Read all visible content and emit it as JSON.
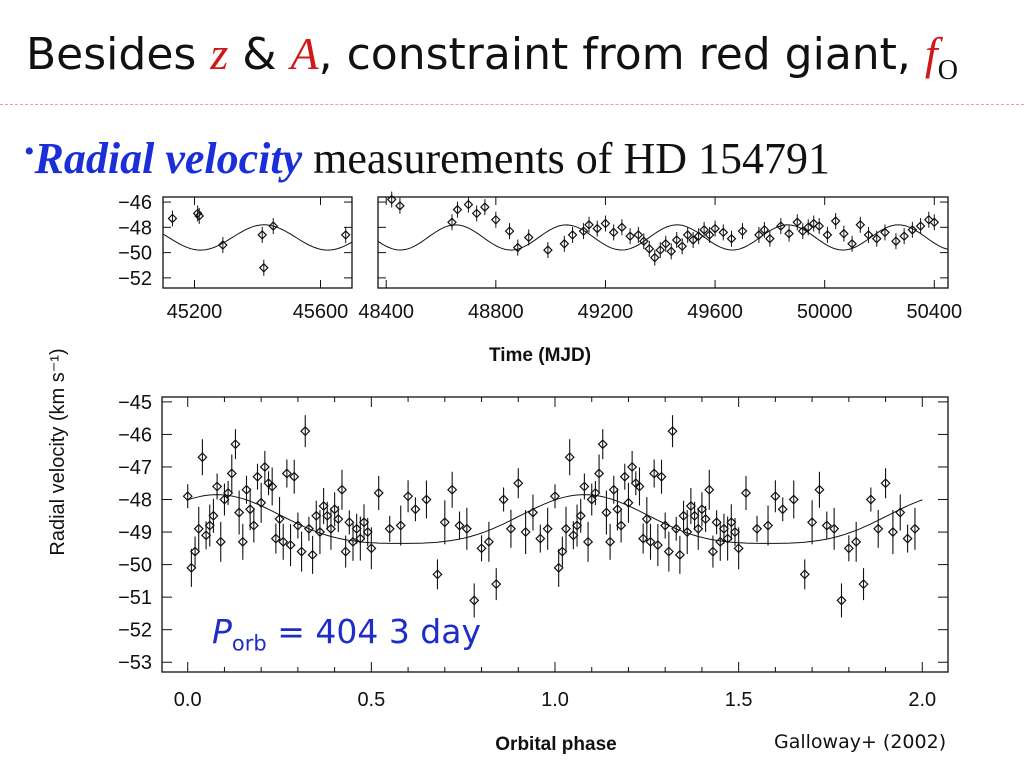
{
  "slide": {
    "title": {
      "prefix": "Besides ",
      "var1": "z",
      "amp": " & ",
      "var2": "A",
      "middle": ", constraint from red giant, ",
      "var3": "f",
      "var3_sub": "O"
    },
    "bullet": {
      "dot": "•",
      "emph": "Radial velocity",
      "rest": " measurements of HD 154791"
    },
    "period_label": {
      "symbol": "P",
      "sub": "orb",
      "rest": " = 404 3 day"
    },
    "citation": "Galloway+ (2002)"
  },
  "chart_data": [
    {
      "type": "scatter",
      "xlabel": "Time (MJD)",
      "ylabel": "",
      "broken_x_axis": [
        [
          45100,
          45700
        ],
        [
          48370,
          50450
        ]
      ],
      "xticks": [
        45200,
        45600,
        48400,
        48800,
        49200,
        49600,
        50000,
        50400
      ],
      "ylim": [
        -52.8,
        -45.6
      ],
      "yticks": [
        -46,
        -48,
        -50,
        -52
      ],
      "ytick_labels": [
        "−46",
        "−48",
        "−50",
        "−52"
      ],
      "marker": "open-diamond",
      "error_bars": true,
      "model_curve": true,
      "series": [
        {
          "x": [
            45130,
            45210,
            45215,
            45290,
            45415,
            45420,
            45450,
            45680,
            48420,
            48450,
            48640,
            48660,
            48700,
            48730,
            48760,
            48800,
            48850,
            48880,
            48920,
            48990,
            49050,
            49080,
            49120,
            49140,
            49170,
            49200,
            49230,
            49260,
            49290,
            49320,
            49340,
            49360,
            49380,
            49400,
            49420,
            49440,
            49460,
            49480,
            49500,
            49520,
            49540,
            49560,
            49580,
            49600,
            49630,
            49660,
            49700,
            49760,
            49780,
            49800,
            49840,
            49870,
            49900,
            49920,
            49940,
            49960,
            49980,
            50010,
            50040,
            50070,
            50100,
            50130,
            50160,
            50190,
            50220,
            50260,
            50290,
            50320,
            50350,
            50380,
            50400
          ],
          "y": [
            -47.3,
            -46.9,
            -47.1,
            -49.4,
            -48.6,
            -51.2,
            -47.9,
            -48.6,
            -45.8,
            -46.3,
            -47.6,
            -46.6,
            -46.2,
            -46.9,
            -46.4,
            -47.4,
            -48.3,
            -49.6,
            -48.8,
            -49.8,
            -49.3,
            -48.6,
            -48.3,
            -47.8,
            -48.1,
            -47.7,
            -48.4,
            -48.0,
            -48.7,
            -48.6,
            -49.1,
            -49.7,
            -50.4,
            -49.8,
            -49.3,
            -49.9,
            -49.0,
            -49.5,
            -48.6,
            -49.0,
            -48.7,
            -48.2,
            -48.6,
            -48.1,
            -48.4,
            -48.9,
            -48.3,
            -48.6,
            -48.2,
            -48.9,
            -47.9,
            -48.5,
            -47.6,
            -48.3,
            -48.0,
            -47.7,
            -47.9,
            -48.6,
            -47.5,
            -48.5,
            -49.3,
            -47.8,
            -48.6,
            -48.9,
            -48.4,
            -49.1,
            -48.7,
            -48.2,
            -47.9,
            -47.4,
            -47.6
          ]
        }
      ]
    },
    {
      "type": "scatter",
      "xlabel": "Orbital phase",
      "ylabel": "Radial velocity (km s⁻¹)",
      "xlim": [
        -0.07,
        2.07
      ],
      "ylim": [
        -53.3,
        -44.85
      ],
      "xticks": [
        0.0,
        0.5,
        1.0,
        1.5,
        2.0
      ],
      "xtick_labels": [
        "0.0",
        "0.5",
        "1.0",
        "1.5",
        "2.0"
      ],
      "yticks": [
        -45,
        -46,
        -47,
        -48,
        -49,
        -50,
        -51,
        -52,
        -53
      ],
      "ytick_labels": [
        "−45",
        "−46",
        "−47",
        "−48",
        "−49",
        "−50",
        "−51",
        "−52",
        "−53"
      ],
      "marker": "open-diamond",
      "error_bars": true,
      "model_curve": true,
      "series": [
        {
          "x": [
            0.0,
            0.01,
            0.02,
            0.03,
            0.04,
            0.05,
            0.06,
            0.07,
            0.08,
            0.09,
            0.1,
            0.11,
            0.12,
            0.13,
            0.14,
            0.15,
            0.16,
            0.17,
            0.18,
            0.19,
            0.2,
            0.21,
            0.22,
            0.23,
            0.24,
            0.25,
            0.26,
            0.27,
            0.28,
            0.29,
            0.3,
            0.31,
            0.32,
            0.33,
            0.34,
            0.35,
            0.36,
            0.37,
            0.38,
            0.39,
            0.4,
            0.41,
            0.42,
            0.43,
            0.44,
            0.45,
            0.46,
            0.47,
            0.48,
            0.49,
            0.5,
            0.52,
            0.55,
            0.58,
            0.6,
            0.62,
            0.65,
            0.68,
            0.7,
            0.72,
            0.74,
            0.76,
            0.78,
            0.8,
            0.82,
            0.84,
            0.86,
            0.88,
            0.9,
            0.92,
            0.94,
            0.96,
            0.98
          ],
          "y": [
            -47.9,
            -50.1,
            -49.6,
            -48.9,
            -46.7,
            -49.1,
            -48.8,
            -48.5,
            -47.6,
            -49.3,
            -48.0,
            -47.8,
            -47.2,
            -46.3,
            -48.4,
            -49.3,
            -47.7,
            -48.3,
            -48.8,
            -47.3,
            -48.1,
            -47.0,
            -47.5,
            -47.6,
            -49.2,
            -48.6,
            -49.3,
            -47.2,
            -49.4,
            -47.3,
            -48.8,
            -49.6,
            -45.9,
            -48.9,
            -49.7,
            -48.5,
            -49.0,
            -48.2,
            -48.5,
            -48.9,
            -48.3,
            -48.6,
            -47.7,
            -49.6,
            -48.7,
            -49.3,
            -48.9,
            -49.2,
            -48.7,
            -49.0,
            -49.5,
            -47.8,
            -48.9,
            -48.8,
            -47.9,
            -48.3,
            -48.0,
            -50.3,
            -48.7,
            -47.7,
            -48.8,
            -48.9,
            -51.1,
            -49.5,
            -49.3,
            -50.6,
            -48.0,
            -48.9,
            -47.5,
            -49.0,
            -48.4,
            -49.2,
            -48.9
          ]
        }
      ]
    }
  ]
}
